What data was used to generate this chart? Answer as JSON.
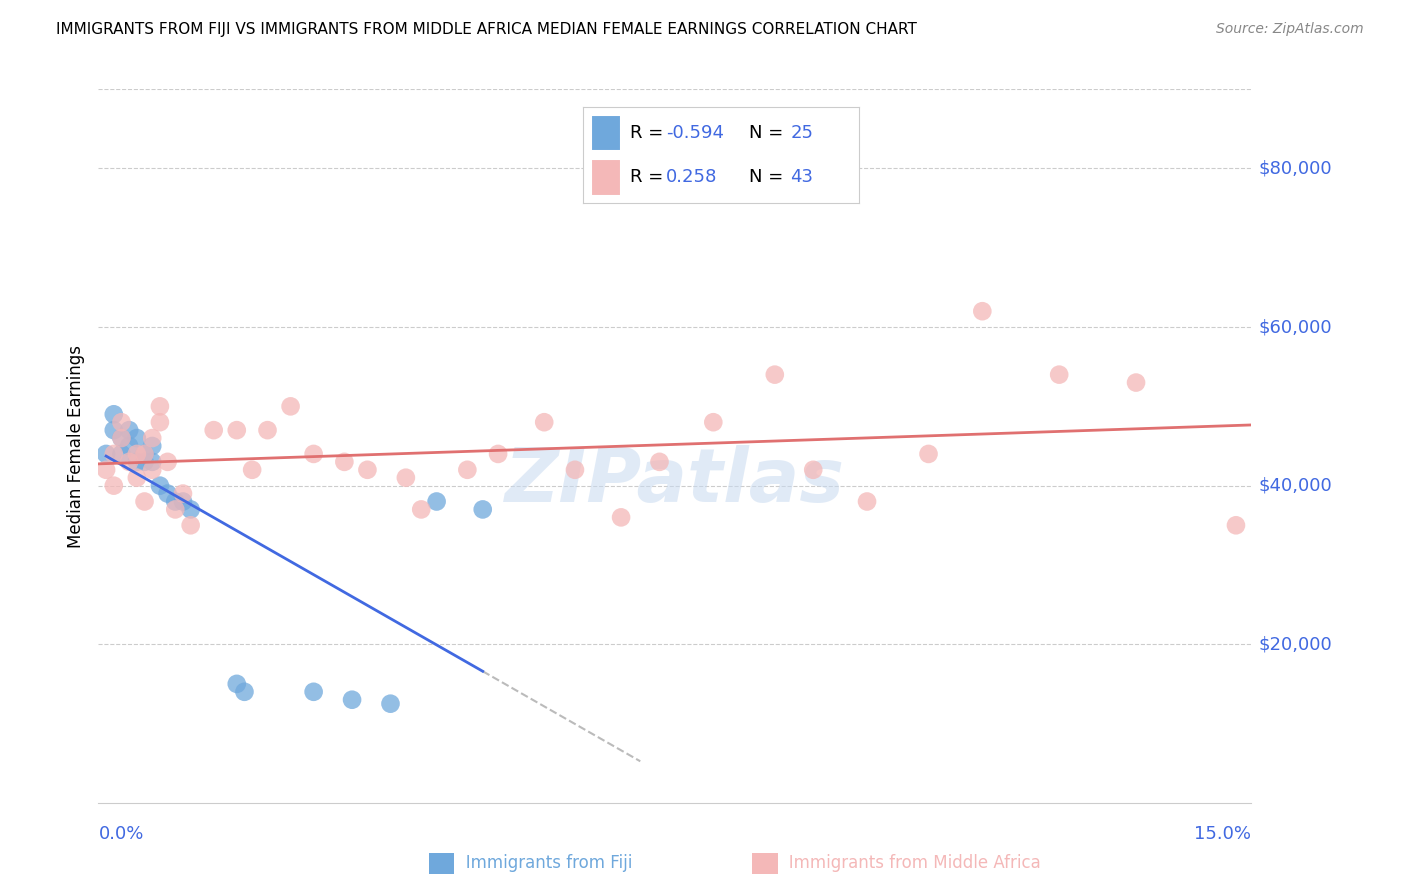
{
  "title": "IMMIGRANTS FROM FIJI VS IMMIGRANTS FROM MIDDLE AFRICA MEDIAN FEMALE EARNINGS CORRELATION CHART",
  "source": "Source: ZipAtlas.com",
  "ylabel": "Median Female Earnings",
  "yticks": [
    20000,
    40000,
    60000,
    80000
  ],
  "ytick_labels": [
    "$20,000",
    "$40,000",
    "$60,000",
    "$80,000"
  ],
  "xlim": [
    0.0,
    0.15
  ],
  "ylim": [
    0,
    90000
  ],
  "watermark": "ZIPatlas",
  "fiji_color": "#6fa8dc",
  "fiji_color_line": "#4169E1",
  "middle_africa_color": "#f4b8b8",
  "middle_africa_color_line": "#e07070",
  "fiji_R_label": "-0.594",
  "fiji_N_label": "25",
  "middle_africa_R_label": "0.258",
  "middle_africa_N_label": "43",
  "label_color": "#4169E1",
  "grid_color": "#cccccc",
  "fiji_x": [
    0.001,
    0.002,
    0.002,
    0.003,
    0.003,
    0.004,
    0.004,
    0.005,
    0.005,
    0.006,
    0.006,
    0.007,
    0.007,
    0.008,
    0.009,
    0.01,
    0.011,
    0.012,
    0.018,
    0.019,
    0.028,
    0.033,
    0.038,
    0.044,
    0.05
  ],
  "fiji_y": [
    44000,
    47000,
    49000,
    44000,
    46000,
    45000,
    47000,
    43000,
    46000,
    44000,
    43000,
    45000,
    43000,
    40000,
    39000,
    38000,
    38000,
    37000,
    15000,
    14000,
    14000,
    13000,
    12500,
    38000,
    37000
  ],
  "middle_africa_x": [
    0.001,
    0.002,
    0.002,
    0.003,
    0.003,
    0.004,
    0.005,
    0.005,
    0.006,
    0.006,
    0.007,
    0.007,
    0.008,
    0.008,
    0.009,
    0.01,
    0.011,
    0.012,
    0.015,
    0.018,
    0.02,
    0.022,
    0.025,
    0.028,
    0.032,
    0.035,
    0.04,
    0.042,
    0.048,
    0.052,
    0.058,
    0.062,
    0.068,
    0.073,
    0.08,
    0.088,
    0.093,
    0.1,
    0.108,
    0.115,
    0.125,
    0.135,
    0.148
  ],
  "middle_africa_y": [
    42000,
    44000,
    40000,
    46000,
    48000,
    43000,
    41000,
    44000,
    44000,
    38000,
    46000,
    42000,
    48000,
    50000,
    43000,
    37000,
    39000,
    35000,
    47000,
    47000,
    42000,
    47000,
    50000,
    44000,
    43000,
    42000,
    41000,
    37000,
    42000,
    44000,
    48000,
    42000,
    36000,
    43000,
    48000,
    54000,
    42000,
    38000,
    44000,
    62000,
    54000,
    53000,
    35000
  ]
}
